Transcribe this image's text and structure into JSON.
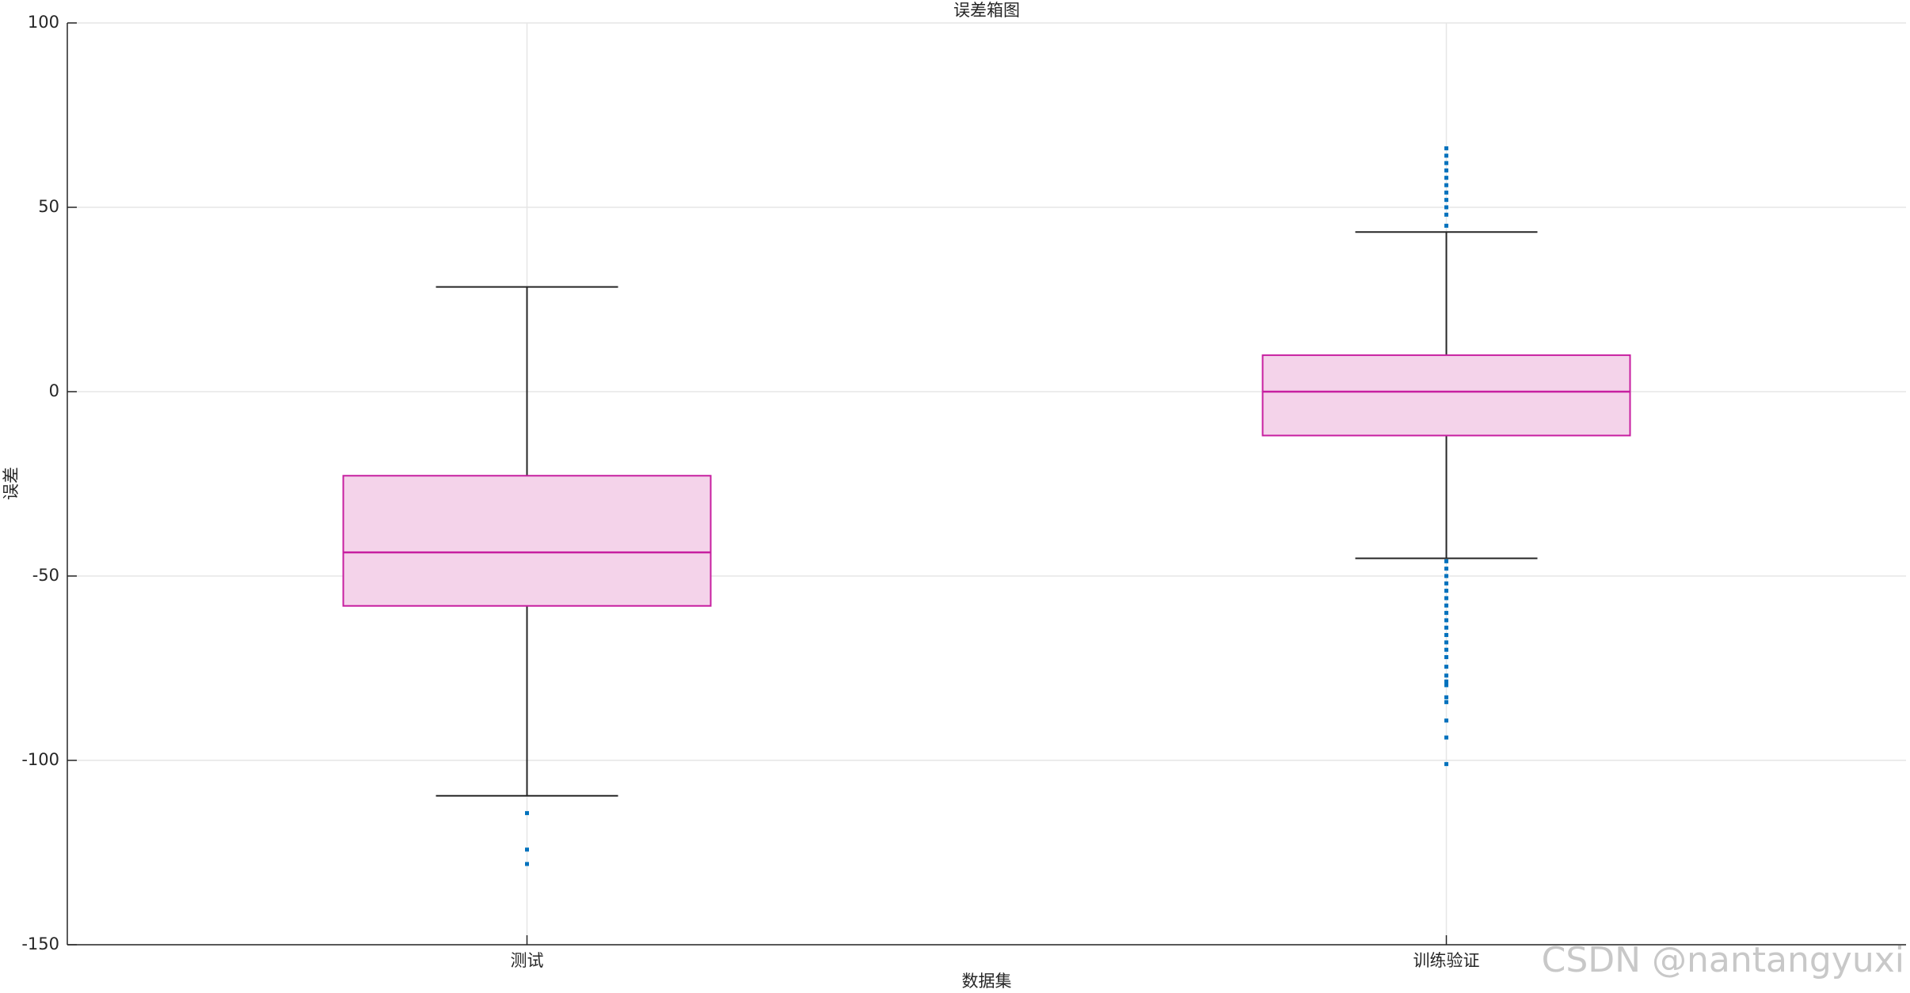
{
  "chart_data": {
    "type": "box",
    "title": "误差箱图",
    "x_label": "数据集",
    "y_label": "误差",
    "watermark": "CSDN @nantangyuxi",
    "categories": [
      "测试",
      "训练验证"
    ],
    "boxes": [
      {
        "q1": -58.1,
        "median": -43.6,
        "q3": -22.8,
        "whisker_low": -109.6,
        "whisker_high": 28.4,
        "outliers": [
          -114.3,
          -124.2,
          -128.1
        ]
      },
      {
        "q1": -11.9,
        "median": 0,
        "q3": 9.9,
        "whisker_low": -45.2,
        "whisker_high": 43.3,
        "outliers": [
          45,
          48,
          50,
          52,
          54,
          56,
          58,
          60,
          62,
          64,
          66,
          -46,
          -48,
          -50,
          -52,
          -54,
          -56,
          -58,
          -60,
          -62,
          -64,
          -66,
          -68,
          -70,
          -72,
          -74.6,
          -77,
          -78.6,
          -79.6,
          -82.9,
          -84.2,
          -89.2,
          -93.8,
          -101
        ]
      }
    ],
    "box_fill": "#f4d3ea",
    "box_edge": "#c71fa0",
    "whisker_color": "#262626",
    "outlier_color": "#0072bd",
    "ylim": [
      -150,
      100
    ],
    "yticks": [
      -150,
      -100,
      -50,
      0,
      50,
      100
    ],
    "grid": true
  }
}
